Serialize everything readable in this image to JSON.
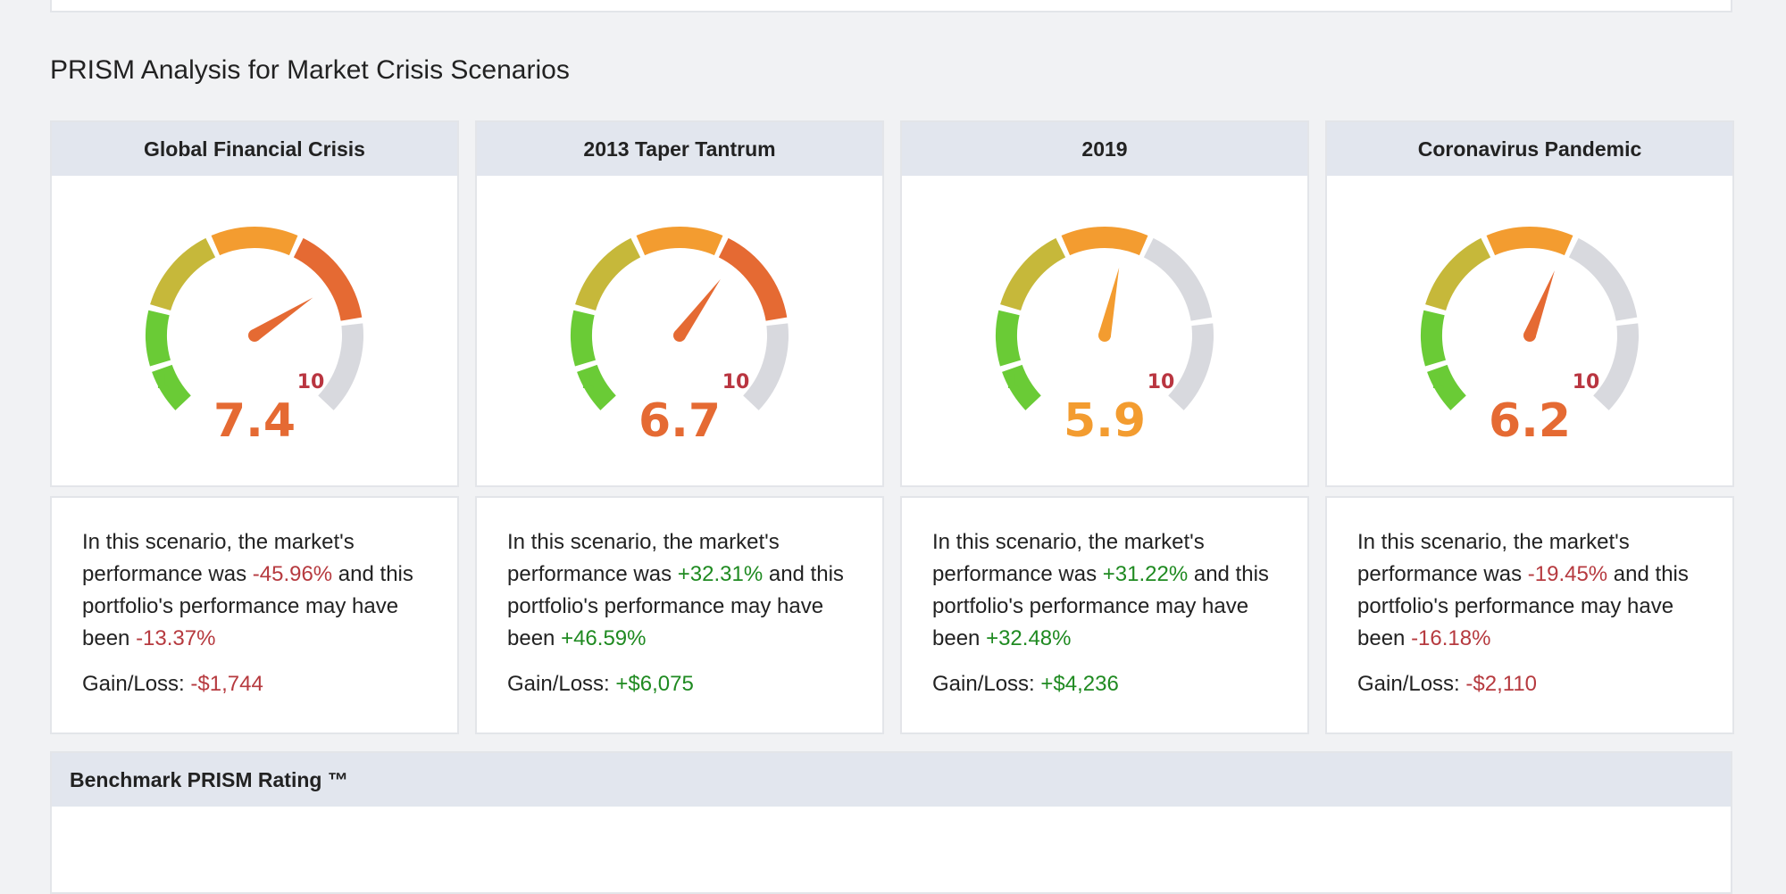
{
  "section_title": "PRISM Analysis for Market Crisis Scenarios",
  "scale": {
    "min_label": "1",
    "max_label": "10",
    "min": 1,
    "max": 10
  },
  "colors": {
    "seg_green": "#6acb36",
    "seg_olive": "#c6b83a",
    "seg_orange": "#f39c30",
    "seg_red": "#e56a33",
    "seg_grey": "#d8d9de",
    "label_min": "#6acb36",
    "label_max": "#b93540"
  },
  "scenarios": [
    {
      "title": "Global Financial Crisis",
      "score": "7.4",
      "value": 7.4,
      "score_color": "#e56a33",
      "text_1": "In this scenario, the market's performance was ",
      "market": "-45.96%",
      "market_sign": "neg",
      "text_2": " and this portfolio's performance may have been ",
      "portfolio": "-13.37%",
      "portfolio_sign": "neg",
      "gain_label": "Gain/Loss: ",
      "gain": "-$1,744",
      "gain_sign": "neg"
    },
    {
      "title": "2013 Taper Tantrum",
      "score": "6.7",
      "value": 6.7,
      "score_color": "#e56a33",
      "text_1": "In this scenario, the market's performance was ",
      "market": "+32.31%",
      "market_sign": "pos",
      "text_2": " and this portfolio's performance may have been ",
      "portfolio": "+46.59%",
      "portfolio_sign": "pos",
      "gain_label": "Gain/Loss: ",
      "gain": "+$6,075",
      "gain_sign": "pos"
    },
    {
      "title": "2019",
      "score": "5.9",
      "value": 5.9,
      "score_color": "#f39c30",
      "text_1": "In this scenario, the market's performance was ",
      "market": "+31.22%",
      "market_sign": "pos",
      "text_2": " and this portfolio's performance may have been ",
      "portfolio": "+32.48%",
      "portfolio_sign": "pos",
      "gain_label": "Gain/Loss: ",
      "gain": "+$4,236",
      "gain_sign": "pos"
    },
    {
      "title": "Coronavirus Pandemic",
      "score": "6.2",
      "value": 6.2,
      "score_color": "#e56a33",
      "text_1": "In this scenario, the market's performance was ",
      "market": "-19.45%",
      "market_sign": "neg",
      "text_2": " and this portfolio's performance may have been ",
      "portfolio": "-16.18%",
      "portfolio_sign": "neg",
      "gain_label": "Gain/Loss: ",
      "gain": "-$2,110",
      "gain_sign": "neg"
    }
  ],
  "benchmark_title": "Benchmark PRISM Rating ™"
}
